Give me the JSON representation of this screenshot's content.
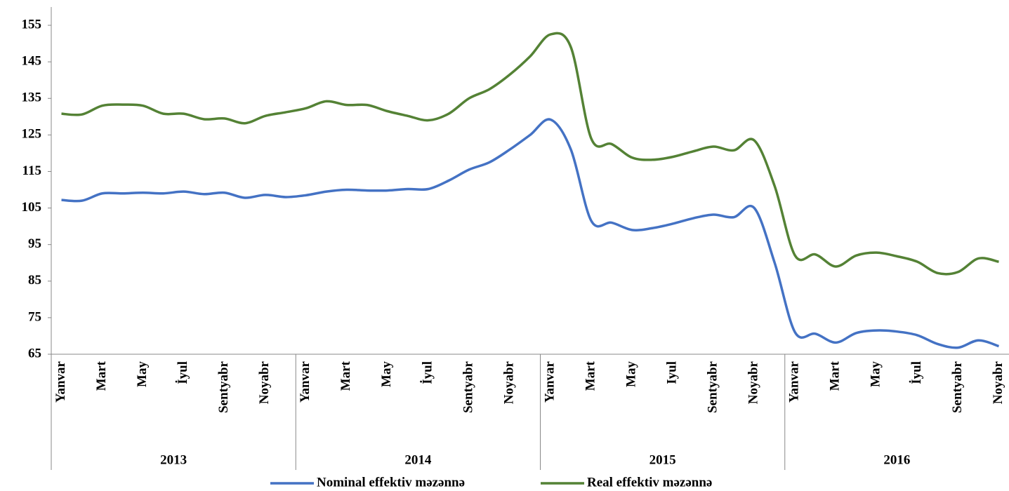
{
  "chart_data": {
    "type": "line",
    "categories": [
      "Yanvar",
      null,
      "Mart",
      null,
      "May",
      null,
      "İyul",
      null,
      "Sentyabr",
      null,
      "Noyabr",
      null,
      "Yanvar",
      null,
      "Mart",
      null,
      "May",
      null,
      "İyul",
      null,
      "Sentyabr",
      null,
      "Noyabr",
      null,
      "Yanvar",
      null,
      "Mart",
      null,
      "May",
      null,
      "Iyul",
      null,
      "Sentyabr",
      null,
      "Noyabr",
      null,
      "Yanvar",
      null,
      "Mart",
      null,
      "May",
      null,
      "İyul",
      null,
      "Sentyabr",
      null,
      "Noyabr"
    ],
    "years": [
      "2013",
      "2014",
      "2015",
      "2016"
    ],
    "series": [
      {
        "name": "Nominal effektiv məzənnə",
        "color": "#4472c4",
        "values": [
          107.2,
          107,
          109,
          109,
          109.2,
          109,
          109.5,
          108.8,
          109.2,
          107.8,
          108.6,
          108,
          108.5,
          109.5,
          110,
          109.8,
          109.8,
          110.2,
          110.2,
          112.5,
          115.5,
          117.5,
          121,
          125,
          129.2,
          121,
          101.5,
          101,
          99,
          99.5,
          100.7,
          102.2,
          103.2,
          102.5,
          105,
          90,
          71,
          70.6,
          68.2,
          70.8,
          71.5,
          71.2,
          70.2,
          67.8,
          66.8,
          68.8,
          67.2
        ]
      },
      {
        "name": "Real effektiv məzənnə",
        "color": "#548235",
        "values": [
          130.8,
          130.6,
          133,
          133.3,
          133,
          130.8,
          130.8,
          129.3,
          129.5,
          128.2,
          130.2,
          131.2,
          132.3,
          134.2,
          133.2,
          133.2,
          131.5,
          130.2,
          129,
          130.8,
          135,
          137.5,
          141.5,
          146.5,
          152.5,
          149,
          124,
          122.5,
          118.8,
          118.2,
          119,
          120.5,
          121.8,
          120.8,
          123.5,
          111,
          92,
          92.3,
          89,
          92,
          92.8,
          91.8,
          90.3,
          87.2,
          87.5,
          91.2,
          90.3
        ]
      }
    ],
    "ylim": [
      65,
      160
    ],
    "yticks": [
      65,
      75,
      85,
      95,
      105,
      115,
      125,
      135,
      145,
      155
    ],
    "legend": "bottom"
  }
}
